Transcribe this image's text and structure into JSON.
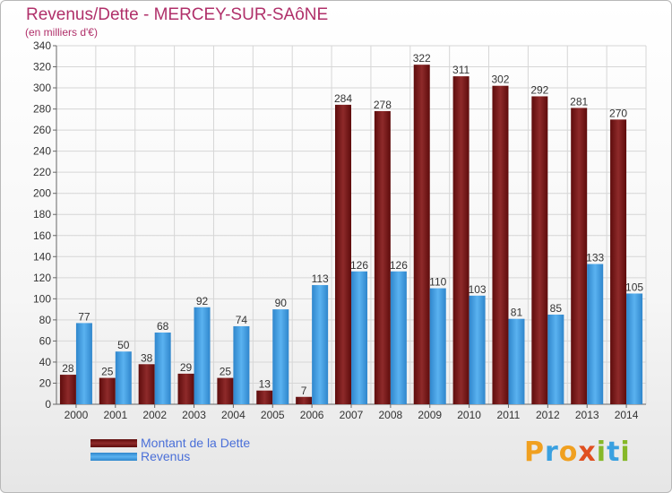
{
  "header": {
    "title": "Revenus/Dette - MERCEY-SUR-SAôNE",
    "subtitle": "(en milliers d'€)"
  },
  "legend": {
    "items": [
      {
        "label": "Montant de la Dette",
        "color": "#7a1a1a"
      },
      {
        "label": "Revenus",
        "color": "#3a96dc"
      }
    ]
  },
  "logo": {
    "text": "Proxiti"
  },
  "chart_data": {
    "type": "bar",
    "title": "Revenus/Dette - MERCEY-SUR-SAôNE",
    "ylabel": "(en milliers d'€)",
    "xlabel": "",
    "ylim": [
      0,
      340
    ],
    "ytick_step": 20,
    "grid": true,
    "legend_position": "bottom-left",
    "categories": [
      "2000",
      "2001",
      "2002",
      "2003",
      "2004",
      "2005",
      "2006",
      "2007",
      "2008",
      "2009",
      "2010",
      "2011",
      "2012",
      "2013",
      "2014"
    ],
    "series": [
      {
        "name": "Montant de la Dette",
        "color": "#7a1a1a",
        "values": [
          28,
          25,
          38,
          29,
          25,
          13,
          7,
          284,
          278,
          322,
          311,
          302,
          292,
          281,
          270
        ]
      },
      {
        "name": "Revenus",
        "color": "#3a96dc",
        "values": [
          77,
          50,
          68,
          92,
          74,
          90,
          113,
          126,
          126,
          110,
          103,
          81,
          85,
          133,
          105
        ]
      }
    ]
  }
}
